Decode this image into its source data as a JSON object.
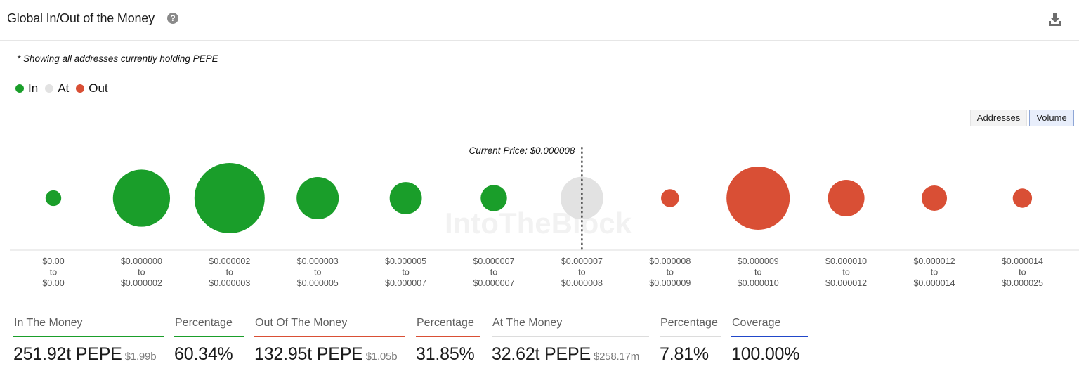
{
  "header": {
    "title": "Global In/Out of the Money",
    "help_icon": "question-circle-icon",
    "download_icon": "download-icon"
  },
  "note": "* Showing all addresses currently holding PEPE",
  "legend": [
    {
      "label": "In",
      "color": "#1a9e2a"
    },
    {
      "label": "At",
      "color": "#e2e2e2"
    },
    {
      "label": "Out",
      "color": "#d94f35"
    }
  ],
  "toggles": {
    "addresses": "Addresses",
    "volume": "Volume",
    "active": "volume"
  },
  "chart_data": {
    "type": "bubble",
    "current_price_label": "Current Price: $0.000008",
    "current_price_index": 6,
    "buckets": [
      {
        "from": "$0.00",
        "to": "$0.00",
        "status": "in",
        "relative_volume": 0.05
      },
      {
        "from": "$0.000000",
        "to": "$0.000002",
        "status": "in",
        "relative_volume": 0.66
      },
      {
        "from": "$0.000002",
        "to": "$0.000003",
        "status": "in",
        "relative_volume": 1.0
      },
      {
        "from": "$0.000003",
        "to": "$0.000005",
        "status": "in",
        "relative_volume": 0.36
      },
      {
        "from": "$0.000005",
        "to": "$0.000007",
        "status": "in",
        "relative_volume": 0.21
      },
      {
        "from": "$0.000007",
        "to": "$0.000007",
        "status": "in",
        "relative_volume": 0.14
      },
      {
        "from": "$0.000007",
        "to": "$0.000008",
        "status": "at",
        "relative_volume": 0.37
      },
      {
        "from": "$0.000008",
        "to": "$0.000009",
        "status": "out",
        "relative_volume": 0.065
      },
      {
        "from": "$0.000009",
        "to": "$0.000010",
        "status": "out",
        "relative_volume": 0.81
      },
      {
        "from": "$0.000010",
        "to": "$0.000012",
        "status": "out",
        "relative_volume": 0.27
      },
      {
        "from": "$0.000012",
        "to": "$0.000014",
        "status": "out",
        "relative_volume": 0.13
      },
      {
        "from": "$0.000014",
        "to": "$0.000025",
        "status": "out",
        "relative_volume": 0.075
      }
    ],
    "to_word": "to",
    "watermark": "IntoTheBlock"
  },
  "stats": [
    {
      "label": "In The Money",
      "value": "251.92t PEPE",
      "sub": "$1.99b",
      "color": "#1a9e2a"
    },
    {
      "label": "Percentage",
      "value": "60.34%",
      "sub": "",
      "color": "#1a9e2a"
    },
    {
      "label": "Out Of The Money",
      "value": "132.95t PEPE",
      "sub": "$1.05b",
      "color": "#d94f35"
    },
    {
      "label": "Percentage",
      "value": "31.85%",
      "sub": "",
      "color": "#d94f35"
    },
    {
      "label": "At The Money",
      "value": "32.62t PEPE",
      "sub": "$258.17m",
      "color": "#dcdcdc"
    },
    {
      "label": "Percentage",
      "value": "7.81%",
      "sub": "",
      "color": "#dcdcdc"
    },
    {
      "label": "Coverage",
      "value": "100.00%",
      "sub": "",
      "color": "#2147c9"
    }
  ]
}
